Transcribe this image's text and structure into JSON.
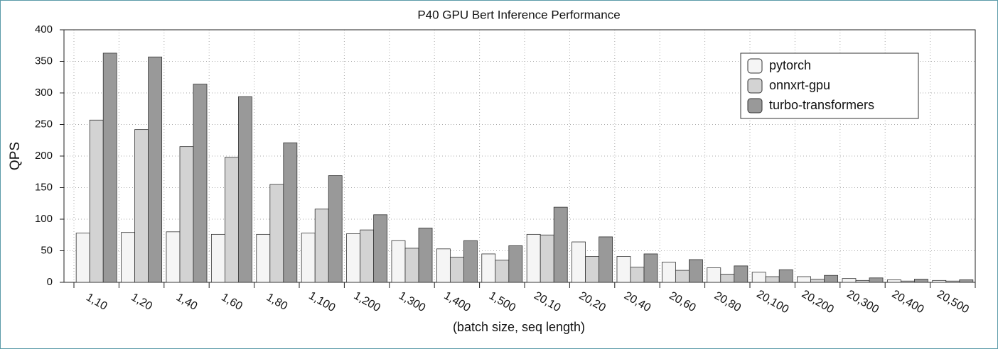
{
  "chart_data": {
    "type": "bar",
    "title": "P40 GPU Bert Inference Performance",
    "x_label": "(batch size, seq length)",
    "y_label": "QPS",
    "categories": [
      "1,10",
      "1,20",
      "1,40",
      "1,60",
      "1,80",
      "1,100",
      "1,200",
      "1,300",
      "1,400",
      "1,500",
      "20,10",
      "20,20",
      "20,40",
      "20,60",
      "20,80",
      "20,100",
      "20,200",
      "20,300",
      "20,400",
      "20,500"
    ],
    "series": [
      {
        "name": "pytorch",
        "color": "#f5f5f5",
        "values": [
          78,
          79,
          80,
          76,
          76,
          78,
          77,
          66,
          53,
          45,
          76,
          64,
          41,
          32,
          23,
          16,
          9,
          6,
          4,
          3
        ]
      },
      {
        "name": "onnxrt-gpu",
        "color": "#d3d3d3",
        "values": [
          257,
          242,
          215,
          198,
          155,
          116,
          83,
          54,
          40,
          35,
          75,
          41,
          24,
          19,
          13,
          9,
          5,
          3,
          2,
          2
        ]
      },
      {
        "name": "turbo-transformers",
        "color": "#999999",
        "values": [
          363,
          357,
          314,
          294,
          221,
          169,
          107,
          86,
          66,
          58,
          119,
          72,
          45,
          36,
          26,
          20,
          11,
          7,
          5,
          4
        ]
      }
    ],
    "ylim": [
      0,
      400
    ],
    "yticks": [
      0,
      50,
      100,
      150,
      200,
      250,
      300,
      350,
      400
    ],
    "grid": true,
    "legend": "upper right"
  }
}
